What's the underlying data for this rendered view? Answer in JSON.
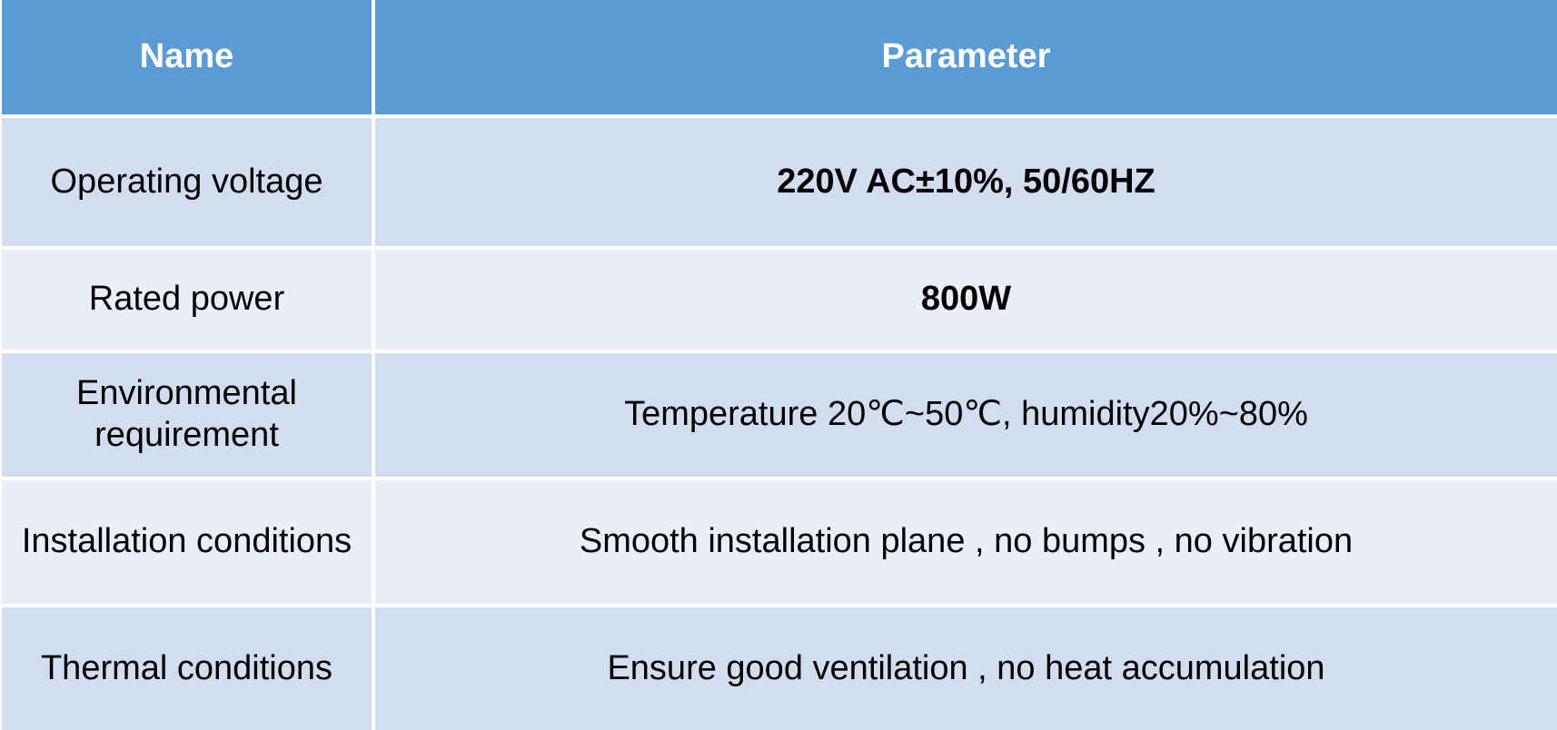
{
  "table": {
    "headers": {
      "name": "Name",
      "parameter": "Parameter"
    },
    "rows": [
      {
        "name": "Operating voltage",
        "parameter": "220V AC±10%,  50/60HZ"
      },
      {
        "name": "Rated power",
        "parameter": "800W"
      },
      {
        "name": "Environmental requirement",
        "parameter": "Temperature 20℃~50℃, humidity20%~80%"
      },
      {
        "name": "Installation conditions",
        "parameter": "Smooth installation plane , no bumps , no vibration"
      },
      {
        "name": "Thermal conditions",
        "parameter": "Ensure good ventilation , no heat accumulation"
      }
    ]
  }
}
